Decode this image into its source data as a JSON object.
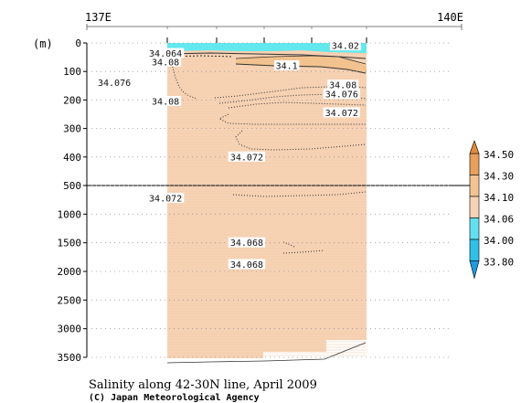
{
  "chart_data": {
    "type": "heatmap",
    "title": "Salinity along 42-30N line, April 2009",
    "credit": "(C) Japan Meteorological Agency",
    "x_axis": {
      "ticks": [
        {
          "value": 137,
          "label": "137E"
        },
        {
          "value": 140,
          "label": "140E"
        }
      ],
      "range": [
        137,
        140
      ]
    },
    "y_axis": {
      "label": "(m)",
      "upper_panel": {
        "range": [
          0,
          500
        ],
        "ticks": [
          0,
          100,
          200,
          300,
          400,
          500
        ]
      },
      "lower_panel": {
        "range": [
          500,
          3500
        ],
        "ticks": [
          1000,
          1500,
          2000,
          2500,
          3000,
          3500
        ]
      }
    },
    "contour_labels": [
      {
        "value": "34.02",
        "lon": 139.07,
        "depth": 10
      },
      {
        "value": "34.064",
        "lon": 137.63,
        "depth": 37
      },
      {
        "value": "34.08",
        "lon": 137.63,
        "depth": 67
      },
      {
        "value": "34.1",
        "lon": 138.6,
        "depth": 80
      },
      {
        "value": "34.076",
        "lon": 137.22,
        "depth": 140
      },
      {
        "value": "34.08",
        "lon": 137.63,
        "depth": 205
      },
      {
        "value": "34.08",
        "lon": 139.05,
        "depth": 148
      },
      {
        "value": "34.076",
        "lon": 139.04,
        "depth": 180
      },
      {
        "value": "34.072",
        "lon": 139.04,
        "depth": 245
      },
      {
        "value": "34.072",
        "lon": 138.28,
        "depth": 400
      },
      {
        "value": "34.072",
        "lon": 137.63,
        "depth": 725
      },
      {
        "value": "34.068",
        "lon": 138.28,
        "depth": 1500
      },
      {
        "value": "34.068",
        "lon": 138.28,
        "depth": 1880
      }
    ],
    "colorbar": {
      "levels": [
        "34.50",
        "34.30",
        "34.10",
        "34.06",
        "34.00",
        "33.80"
      ],
      "colors": [
        "#e8a05c",
        "#f2c492",
        "#f7d3b5",
        "#63e0f0",
        "#2fc0e8"
      ]
    },
    "section_lon_range": [
      137.7,
      139.7
    ],
    "fill_color_main": "#f7d3b5",
    "fill_color_surface": "#63e8ee",
    "grid": false
  }
}
